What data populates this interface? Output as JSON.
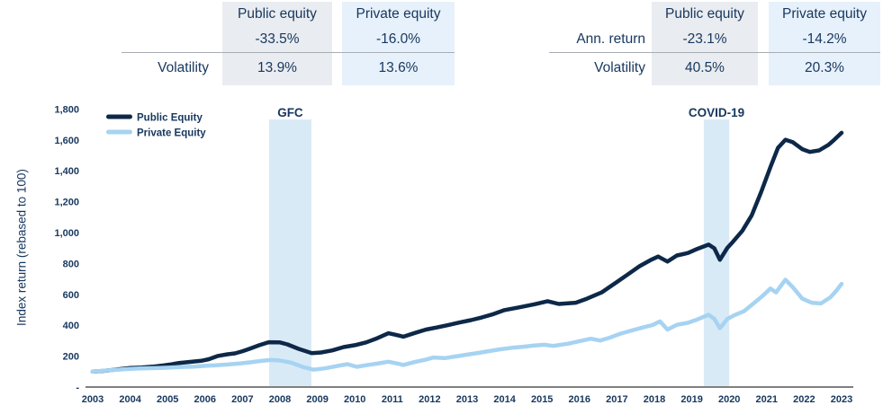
{
  "colors": {
    "text_navy": "#17375e",
    "public_line": "#0d2848",
    "private_line": "#a6d3f2",
    "event_band": "#d9eaf7",
    "axis_gray": "#808080",
    "table_public_bg": "#e9ecf0",
    "table_private_bg": "#e7f1fb"
  },
  "stat_tables": [
    {
      "name": "gfc-stats",
      "col_headers": {
        "public": "Public equity",
        "private": "Private equity"
      },
      "rows": [
        {
          "label": "",
          "public": "-33.5%",
          "private": "-16.0%"
        },
        {
          "label": "Volatility",
          "public": "13.9%",
          "private": "13.6%"
        }
      ]
    },
    {
      "name": "covid-stats",
      "col_headers": {
        "public": "Public equity",
        "private": "Private equity"
      },
      "rows": [
        {
          "label": "Ann. return",
          "public": "-23.1%",
          "private": "-14.2%"
        },
        {
          "label": "Volatility",
          "public": "40.5%",
          "private": "20.3%"
        }
      ]
    }
  ],
  "chart_data": {
    "type": "line",
    "title": "",
    "xlabel": "",
    "ylabel": "Index return (rebased to 100)",
    "xlim": [
      2003,
      2023
    ],
    "ylim": [
      0,
      1800
    ],
    "grid": false,
    "legend_position": "top-left",
    "x_ticks": [
      "2003",
      "2004",
      "2005",
      "2006",
      "2007",
      "2008",
      "2009",
      "2010",
      "2011",
      "2012",
      "2013",
      "2014",
      "2015",
      "2016",
      "2017",
      "2018",
      "2019",
      "2020",
      "2021",
      "2022",
      "2023"
    ],
    "y_ticks": [
      {
        "label": "1,800",
        "value": 1800
      },
      {
        "label": "1,600",
        "value": 1600
      },
      {
        "label": "1,400",
        "value": 1400
      },
      {
        "label": "1,200",
        "value": 1200
      },
      {
        "label": "1,000",
        "value": 1000
      },
      {
        "label": "800",
        "value": 800
      },
      {
        "label": "600",
        "value": 600
      },
      {
        "label": "400",
        "value": 400
      },
      {
        "label": "200",
        "value": 200
      },
      {
        "label": "-",
        "value": 0
      }
    ],
    "legend": [
      {
        "label": "Public Equity",
        "color": "#0d2848"
      },
      {
        "label": "Private Equity",
        "color": "#a6d3f2"
      }
    ],
    "events": [
      {
        "label": "GFC",
        "x_start": 2007.71,
        "x_end": 2008.84
      },
      {
        "label": "COVID-19",
        "x_start": 2019.32,
        "x_end": 2020.0
      }
    ],
    "series": [
      {
        "name": "Public Equity",
        "color": "#0d2848",
        "points": [
          [
            2003.0,
            100
          ],
          [
            2003.25,
            104
          ],
          [
            2003.5,
            110
          ],
          [
            2003.75,
            117
          ],
          [
            2004.0,
            124
          ],
          [
            2004.3,
            127
          ],
          [
            2004.6,
            132
          ],
          [
            2004.9,
            140
          ],
          [
            2005.1,
            147
          ],
          [
            2005.3,
            156
          ],
          [
            2005.6,
            163
          ],
          [
            2005.9,
            170
          ],
          [
            2006.1,
            180
          ],
          [
            2006.35,
            202
          ],
          [
            2006.6,
            212
          ],
          [
            2006.8,
            218
          ],
          [
            2007.0,
            232
          ],
          [
            2007.2,
            249
          ],
          [
            2007.45,
            271
          ],
          [
            2007.7,
            290
          ],
          [
            2008.0,
            289
          ],
          [
            2008.2,
            276
          ],
          [
            2008.5,
            247
          ],
          [
            2008.85,
            219
          ],
          [
            2009.1,
            224
          ],
          [
            2009.4,
            237
          ],
          [
            2009.7,
            259
          ],
          [
            2010.0,
            271
          ],
          [
            2010.3,
            289
          ],
          [
            2010.6,
            316
          ],
          [
            2010.9,
            348
          ],
          [
            2011.1,
            338
          ],
          [
            2011.3,
            326
          ],
          [
            2011.6,
            350
          ],
          [
            2011.9,
            372
          ],
          [
            2012.2,
            386
          ],
          [
            2012.5,
            402
          ],
          [
            2012.8,
            418
          ],
          [
            2013.1,
            433
          ],
          [
            2013.4,
            451
          ],
          [
            2013.7,
            472
          ],
          [
            2014.0,
            498
          ],
          [
            2014.4,
            516
          ],
          [
            2014.8,
            536
          ],
          [
            2015.15,
            556
          ],
          [
            2015.45,
            538
          ],
          [
            2015.9,
            546
          ],
          [
            2016.2,
            572
          ],
          [
            2016.6,
            614
          ],
          [
            2017.0,
            680
          ],
          [
            2017.3,
            731
          ],
          [
            2017.6,
            782
          ],
          [
            2017.9,
            822
          ],
          [
            2018.1,
            845
          ],
          [
            2018.35,
            812
          ],
          [
            2018.6,
            852
          ],
          [
            2018.9,
            868
          ],
          [
            2019.15,
            895
          ],
          [
            2019.45,
            922
          ],
          [
            2019.6,
            898
          ],
          [
            2019.75,
            824
          ],
          [
            2019.95,
            901
          ],
          [
            2020.1,
            941
          ],
          [
            2020.35,
            1012
          ],
          [
            2020.6,
            1112
          ],
          [
            2020.85,
            1262
          ],
          [
            2021.1,
            1425
          ],
          [
            2021.3,
            1548
          ],
          [
            2021.5,
            1601
          ],
          [
            2021.7,
            1585
          ],
          [
            2021.95,
            1540
          ],
          [
            2022.15,
            1522
          ],
          [
            2022.4,
            1532
          ],
          [
            2022.65,
            1568
          ],
          [
            2022.8,
            1600
          ],
          [
            2023.0,
            1646
          ]
        ]
      },
      {
        "name": "Private Equity",
        "color": "#a6d3f2",
        "points": [
          [
            2003.0,
            100
          ],
          [
            2003.3,
            106
          ],
          [
            2003.6,
            111
          ],
          [
            2003.9,
            116
          ],
          [
            2004.2,
            120
          ],
          [
            2004.5,
            122
          ],
          [
            2004.8,
            124
          ],
          [
            2005.1,
            127
          ],
          [
            2005.4,
            130
          ],
          [
            2005.7,
            132
          ],
          [
            2006.0,
            137
          ],
          [
            2006.3,
            141
          ],
          [
            2006.6,
            146
          ],
          [
            2006.9,
            152
          ],
          [
            2007.2,
            160
          ],
          [
            2007.5,
            169
          ],
          [
            2007.75,
            175
          ],
          [
            2008.0,
            172
          ],
          [
            2008.3,
            158
          ],
          [
            2008.6,
            131
          ],
          [
            2008.9,
            112
          ],
          [
            2009.2,
            121
          ],
          [
            2009.5,
            135
          ],
          [
            2009.8,
            148
          ],
          [
            2010.05,
            131
          ],
          [
            2010.3,
            141
          ],
          [
            2010.6,
            152
          ],
          [
            2010.9,
            164
          ],
          [
            2011.15,
            152
          ],
          [
            2011.3,
            143
          ],
          [
            2011.6,
            162
          ],
          [
            2011.9,
            178
          ],
          [
            2012.1,
            191
          ],
          [
            2012.4,
            187
          ],
          [
            2012.7,
            198
          ],
          [
            2013.0,
            210
          ],
          [
            2013.3,
            221
          ],
          [
            2013.6,
            233
          ],
          [
            2013.9,
            245
          ],
          [
            2014.2,
            254
          ],
          [
            2014.5,
            261
          ],
          [
            2014.8,
            269
          ],
          [
            2015.05,
            274
          ],
          [
            2015.3,
            266
          ],
          [
            2015.7,
            281
          ],
          [
            2016.0,
            297
          ],
          [
            2016.3,
            313
          ],
          [
            2016.55,
            301
          ],
          [
            2016.8,
            319
          ],
          [
            2017.1,
            346
          ],
          [
            2017.4,
            366
          ],
          [
            2017.7,
            386
          ],
          [
            2017.95,
            401
          ],
          [
            2018.15,
            425
          ],
          [
            2018.35,
            372
          ],
          [
            2018.6,
            403
          ],
          [
            2018.9,
            416
          ],
          [
            2019.15,
            438
          ],
          [
            2019.45,
            468
          ],
          [
            2019.6,
            441
          ],
          [
            2019.75,
            381
          ],
          [
            2019.95,
            441
          ],
          [
            2020.15,
            466
          ],
          [
            2020.4,
            492
          ],
          [
            2020.65,
            541
          ],
          [
            2020.9,
            592
          ],
          [
            2021.1,
            638
          ],
          [
            2021.25,
            613
          ],
          [
            2021.5,
            695
          ],
          [
            2021.7,
            646
          ],
          [
            2021.95,
            572
          ],
          [
            2022.2,
            546
          ],
          [
            2022.45,
            541
          ],
          [
            2022.7,
            581
          ],
          [
            2022.85,
            621
          ],
          [
            2023.0,
            668
          ]
        ]
      }
    ]
  }
}
